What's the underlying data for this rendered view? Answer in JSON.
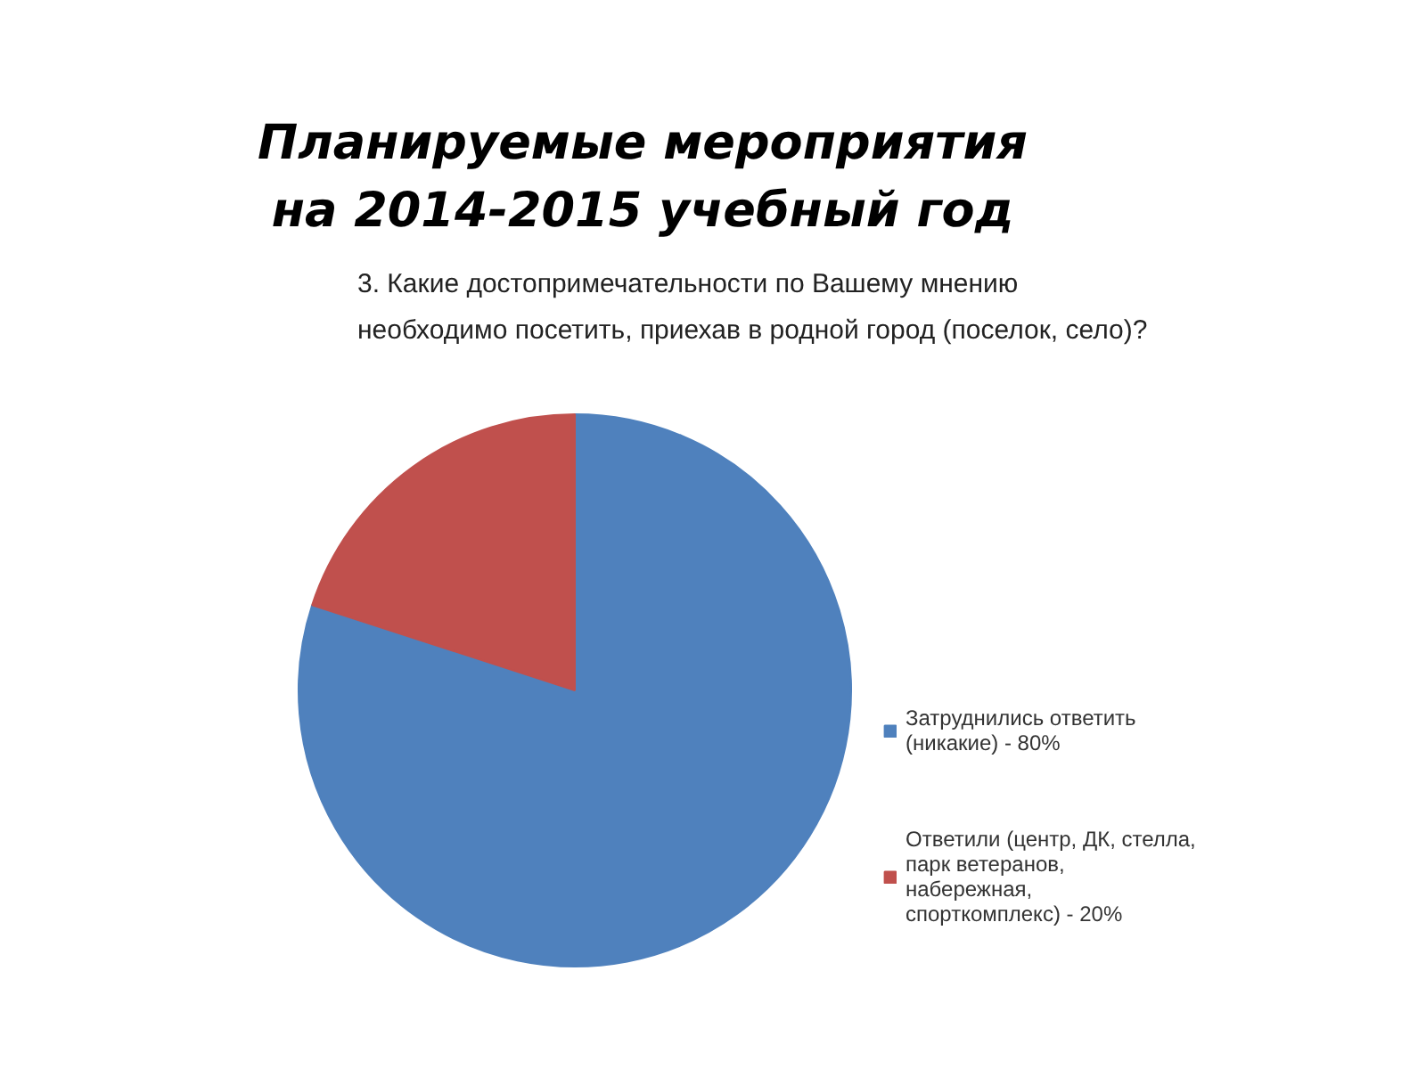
{
  "chart_data": {
    "type": "pie",
    "title": "Планируемые мероприятия\nна 2014-2015 учебный год",
    "subtitle": "3. Какие достопримечательности по Вашему мнению\nнеобходимо посетить, приехав в родной город (поселок, село)?",
    "categories": [
      "Затруднились ответить\n(никакие) - 80%",
      "Ответили (центр, ДК, стелла,\nпарк ветеранов,\nнабережная,\nспорткомплекс) - 20%"
    ],
    "values": [
      80,
      20
    ],
    "colors": [
      "#4f81bd",
      "#c0504d"
    ],
    "legend": "right"
  }
}
